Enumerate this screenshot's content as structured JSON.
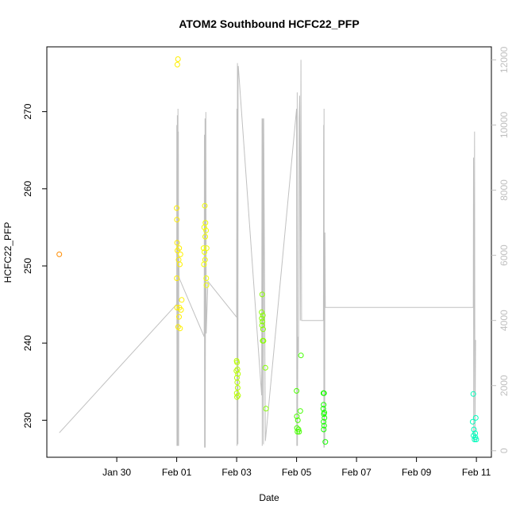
{
  "chart_data": {
    "type": "scatter",
    "title": "ATOM2 Southbound HCFC22_PFP",
    "xlabel": "Date",
    "ylabel": "HCFC22_PFP",
    "xlim": [
      "2017-01-27T16:00",
      "2017-02-11T12:00"
    ],
    "ylim": [
      225.2,
      278.4
    ],
    "xticks": [
      {
        "label": "Jan 30",
        "value": "2017-01-30"
      },
      {
        "label": "Feb 01",
        "value": "2017-02-01"
      },
      {
        "label": "Feb 03",
        "value": "2017-02-03"
      },
      {
        "label": "Feb 05",
        "value": "2017-02-05"
      },
      {
        "label": "Feb 07",
        "value": "2017-02-07"
      },
      {
        "label": "Feb 09",
        "value": "2017-02-09"
      },
      {
        "label": "Feb 11",
        "value": "2017-02-11"
      }
    ],
    "yticks": [
      230,
      240,
      250,
      260,
      270
    ],
    "y2_axis": {
      "label": "",
      "ylim": [
        -200,
        12400
      ],
      "ticks": [
        0,
        2000,
        4000,
        6000,
        8000,
        10000,
        12000
      ],
      "color": "#bfbfbf"
    },
    "grid": false,
    "legend": "none",
    "series": [
      {
        "type": "scatter",
        "marker": "open-circle",
        "color_scale": [
          "#ff8c00",
          "#ffff00",
          "#00ff00",
          "#00ffbf"
        ],
        "points": [
          [
            "2017-01-28T02:00",
            251.5
          ],
          [
            "2017-02-01T01:00",
            276.8
          ],
          [
            "2017-02-01T00:30",
            276.1
          ],
          [
            "2017-02-01T00:00",
            257.5
          ],
          [
            "2017-02-01T00:10",
            256.0
          ],
          [
            "2017-02-01T00:20",
            253.0
          ],
          [
            "2017-02-01T02:00",
            252.3
          ],
          [
            "2017-02-01T00:40",
            252.0
          ],
          [
            "2017-02-01T03:00",
            251.5
          ],
          [
            "2017-02-01T01:30",
            250.8
          ],
          [
            "2017-02-01T02:30",
            250.2
          ],
          [
            "2017-02-01T00:05",
            248.4
          ],
          [
            "2017-02-01T04:00",
            245.6
          ],
          [
            "2017-02-01T02:10",
            244.6
          ],
          [
            "2017-02-01T00:15",
            244.6
          ],
          [
            "2017-02-01T03:30",
            244.3
          ],
          [
            "2017-02-01T01:10",
            242.1
          ],
          [
            "2017-02-01T02:40",
            241.9
          ],
          [
            "2017-02-01T01:50",
            243.4
          ],
          [
            "2017-02-01T22:30",
            257.8
          ],
          [
            "2017-02-01T23:00",
            255.6
          ],
          [
            "2017-02-01T22:00",
            255.0
          ],
          [
            "2017-02-01T23:30",
            254.6
          ],
          [
            "2017-02-01T22:50",
            253.8
          ],
          [
            "2017-02-01T21:30",
            252.3
          ],
          [
            "2017-02-02T00:00",
            252.3
          ],
          [
            "2017-02-01T22:10",
            251.8
          ],
          [
            "2017-02-01T22:40",
            250.8
          ],
          [
            "2017-02-01T21:50",
            250.2
          ],
          [
            "2017-02-01T23:40",
            248.4
          ],
          [
            "2017-02-01T23:50",
            247.5
          ],
          [
            "2017-02-03T00:00",
            237.7
          ],
          [
            "2017-02-03T00:20",
            237.5
          ],
          [
            "2017-02-03T00:40",
            236.6
          ],
          [
            "2017-02-02T23:50",
            236.4
          ],
          [
            "2017-02-03T01:00",
            236.0
          ],
          [
            "2017-02-03T00:10",
            235.5
          ],
          [
            "2017-02-03T00:30",
            234.9
          ],
          [
            "2017-02-03T00:50",
            234.2
          ],
          [
            "2017-02-03T00:05",
            233.5
          ],
          [
            "2017-02-03T01:10",
            233.2
          ],
          [
            "2017-02-03T00:15",
            233.0
          ],
          [
            "2017-02-03T20:30",
            246.3
          ],
          [
            "2017-02-03T20:00",
            244.0
          ],
          [
            "2017-02-03T21:00",
            243.6
          ],
          [
            "2017-02-03T20:10",
            243.2
          ],
          [
            "2017-02-03T20:40",
            242.8
          ],
          [
            "2017-02-03T20:20",
            242.3
          ],
          [
            "2017-02-03T21:10",
            241.8
          ],
          [
            "2017-02-03T20:50",
            240.3
          ],
          [
            "2017-02-03T21:30",
            240.3
          ],
          [
            "2017-02-03T23:00",
            236.8
          ],
          [
            "2017-02-03T23:30",
            231.5
          ],
          [
            "2017-02-05T00:00",
            233.8
          ],
          [
            "2017-02-05T00:10",
            230.5
          ],
          [
            "2017-02-05T01:00",
            230.0
          ],
          [
            "2017-02-05T00:20",
            229.0
          ],
          [
            "2017-02-05T01:30",
            228.8
          ],
          [
            "2017-02-05T00:40",
            228.5
          ],
          [
            "2017-02-05T02:00",
            228.5
          ],
          [
            "2017-02-05T03:30",
            238.4
          ],
          [
            "2017-02-05T03:00",
            231.2
          ],
          [
            "2017-02-05T21:30",
            233.5
          ],
          [
            "2017-02-05T22:00",
            233.5
          ],
          [
            "2017-02-05T21:40",
            232.0
          ],
          [
            "2017-02-05T21:20",
            231.5
          ],
          [
            "2017-02-05T22:10",
            231.0
          ],
          [
            "2017-02-05T21:50",
            230.8
          ],
          [
            "2017-02-05T22:20",
            230.3
          ],
          [
            "2017-02-05T21:35",
            229.8
          ],
          [
            "2017-02-05T22:05",
            229.3
          ],
          [
            "2017-02-05T21:45",
            228.8
          ],
          [
            "2017-02-05T23:00",
            227.2
          ],
          [
            "2017-02-10T21:30",
            233.4
          ],
          [
            "2017-02-10T21:00",
            229.8
          ],
          [
            "2017-02-10T23:30",
            230.3
          ],
          [
            "2017-02-10T22:00",
            228.8
          ],
          [
            "2017-02-10T23:00",
            228.3
          ],
          [
            "2017-02-10T21:40",
            228.0
          ],
          [
            "2017-02-10T23:10",
            227.8
          ],
          [
            "2017-02-10T22:30",
            227.5
          ],
          [
            "2017-02-10T23:50",
            227.5
          ]
        ]
      },
      {
        "type": "line",
        "axis": "y2",
        "color": "#c0c0c0",
        "points": [
          [
            "2017-01-28T02:00",
            550
          ],
          [
            "2017-02-01T00:00",
            4500
          ],
          [
            "2017-02-01T00:05",
            10000
          ],
          [
            "2017-02-01T00:10",
            150
          ],
          [
            "2017-02-01T00:30",
            10300
          ],
          [
            "2017-02-01T00:40",
            150
          ],
          [
            "2017-02-01T01:00",
            10500
          ],
          [
            "2017-02-01T01:10",
            150
          ],
          [
            "2017-02-01T01:20",
            9800
          ],
          [
            "2017-02-01T01:30",
            150
          ],
          [
            "2017-02-01T01:40",
            6000
          ],
          [
            "2017-02-01T02:00",
            5300
          ],
          [
            "2017-02-01T22:00",
            3500
          ],
          [
            "2017-02-01T22:10",
            9700
          ],
          [
            "2017-02-01T22:20",
            100
          ],
          [
            "2017-02-01T22:40",
            10200
          ],
          [
            "2017-02-01T22:50",
            100
          ],
          [
            "2017-02-01T23:20",
            10400
          ],
          [
            "2017-02-01T23:40",
            3600
          ],
          [
            "2017-02-02T01:00",
            5200
          ],
          [
            "2017-02-03T00:00",
            4100
          ],
          [
            "2017-02-03T00:10",
            10500
          ],
          [
            "2017-02-03T00:20",
            150
          ],
          [
            "2017-02-03T00:40",
            11900
          ],
          [
            "2017-02-03T01:00",
            200
          ],
          [
            "2017-02-03T01:10",
            11800
          ],
          [
            "2017-02-03T01:20",
            11800
          ],
          [
            "2017-02-03T20:00",
            1700
          ],
          [
            "2017-02-03T20:20",
            10200
          ],
          [
            "2017-02-03T20:30",
            150
          ],
          [
            "2017-02-03T21:00",
            10200
          ],
          [
            "2017-02-03T21:30",
            200
          ],
          [
            "2017-02-03T21:40",
            10200
          ],
          [
            "2017-02-03T23:00",
            300
          ],
          [
            "2017-02-05T00:00",
            10500
          ],
          [
            "2017-02-05T00:10",
            150
          ],
          [
            "2017-02-05T00:30",
            11000
          ],
          [
            "2017-02-05T00:40",
            150
          ],
          [
            "2017-02-05T01:00",
            3500
          ],
          [
            "2017-02-05T01:30",
            3000
          ],
          [
            "2017-02-05T02:00",
            10200
          ],
          [
            "2017-02-05T02:30",
            10900
          ],
          [
            "2017-02-05T03:00",
            4000
          ],
          [
            "2017-02-05T03:30",
            12000
          ],
          [
            "2017-02-05T04:00",
            4000
          ],
          [
            "2017-02-05T21:30",
            4000
          ],
          [
            "2017-02-05T21:40",
            10000
          ],
          [
            "2017-02-05T21:50",
            100
          ],
          [
            "2017-02-05T22:00",
            10500
          ],
          [
            "2017-02-05T22:10",
            100
          ],
          [
            "2017-02-05T22:20",
            6600
          ],
          [
            "2017-02-05T22:30",
            250
          ],
          [
            "2017-02-05T22:40",
            6700
          ],
          [
            "2017-02-05T23:00",
            4400
          ],
          [
            "2017-02-10T21:30",
            4400
          ],
          [
            "2017-02-10T21:40",
            9000
          ],
          [
            "2017-02-10T21:50",
            300
          ],
          [
            "2017-02-10T22:30",
            9800
          ],
          [
            "2017-02-10T22:50",
            300
          ],
          [
            "2017-02-10T23:20",
            3400
          ]
        ]
      }
    ]
  }
}
